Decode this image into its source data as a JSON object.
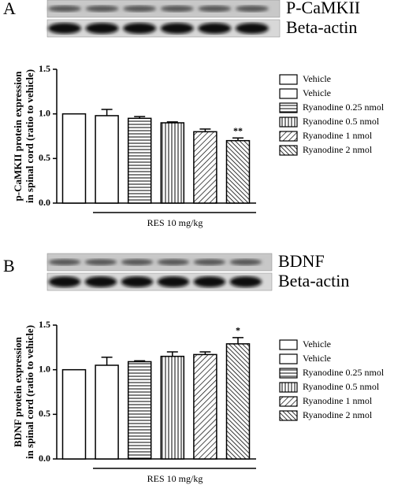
{
  "chart_data": [
    {
      "type": "bar",
      "panel": "A",
      "blots": [
        "P-CaMKII",
        "Beta-actin"
      ],
      "y_label": [
        "p-CaMKII protein expression",
        "in spinal cord (ratio to vehicle)"
      ],
      "categories": [
        "Vehicle",
        "Vehicle",
        "Ryanodine 0.25 nmol",
        "Ryanodine 0.5 nmol",
        "Ryanodine 1 nmol",
        "Ryanodine 2 nmol"
      ],
      "hatches": [
        "none",
        "none",
        "horizontal",
        "vertical",
        "diagonal",
        "backdiagonal"
      ],
      "values": [
        1.0,
        0.98,
        0.95,
        0.9,
        0.8,
        0.7
      ],
      "errors": [
        0,
        0.07,
        0.02,
        0.01,
        0.03,
        0.03
      ],
      "annotations": [
        {
          "text": "**",
          "category_index": 5
        }
      ],
      "group_label": "RES 10 mg/kg",
      "ylim": [
        0,
        1.5
      ],
      "yticks": [
        {
          "value": 0,
          "label": "0.0"
        },
        0.5,
        {
          "value": 1,
          "label": "1.0"
        },
        1.5
      ]
    },
    {
      "type": "bar",
      "panel": "B",
      "blots": [
        "BDNF",
        "Beta-actin"
      ],
      "y_label": [
        "BDNF protein expression",
        "in spinal cord (ratio to vehicle)"
      ],
      "categories": [
        "Vehicle",
        "Vehicle",
        "Ryanodine 0.25 nmol",
        "Ryanodine 0.5 nmol",
        "Ryanodine 1 nmol",
        "Ryanodine 2 nmol"
      ],
      "hatches": [
        "none",
        "none",
        "horizontal",
        "vertical",
        "diagonal",
        "backdiagonal"
      ],
      "values": [
        1.0,
        1.05,
        1.09,
        1.15,
        1.17,
        1.29
      ],
      "errors": [
        0,
        0.09,
        0.01,
        0.05,
        0.03,
        0.07
      ],
      "annotations": [
        {
          "text": "*",
          "category_index": 5
        }
      ],
      "group_label": "RES 10 mg/kg",
      "ylim": [
        0,
        1.5
      ],
      "yticks": [
        {
          "value": 0,
          "label": "0.0"
        },
        0.5,
        {
          "value": 1,
          "label": "1.0"
        },
        1.5
      ]
    }
  ]
}
